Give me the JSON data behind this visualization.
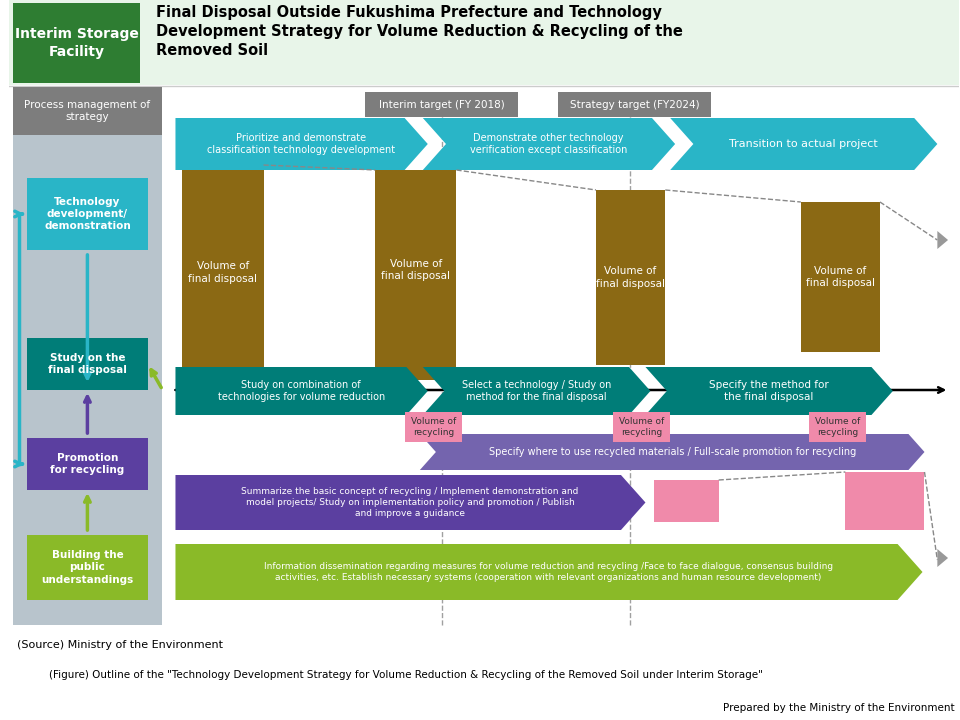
{
  "title_green": "Interim Storage\nFacility",
  "title_main": "Final Disposal Outside Fukushima Prefecture and Technology\nDevelopment Strategy for Volume Reduction & Recycling of the\nRemoved Soil",
  "header_bg": "#e8f5e9",
  "header_green_bg": "#2e7d32",
  "source_text": "(Source) Ministry of the Environment",
  "figure_text": "(Figure) Outline of the \"Technology Development Strategy for Volume Reduction & Recycling of the Removed Soil under Interim Storage\"",
  "prepared_text": "Prepared by the Ministry of the Environment",
  "process_label": "Process management of\nstrategy",
  "colors": {
    "teal_light": "#29b5c7",
    "teal_dark": "#007d78",
    "brown": "#8b6914",
    "green_lime": "#8aba28",
    "purple_dark": "#5b3fa0",
    "purple_mid": "#7464ae",
    "pink": "#f08aaa",
    "gray_panel": "#b8c4cc",
    "gray_header": "#7d7d7d",
    "gray_dash": "#888888"
  }
}
